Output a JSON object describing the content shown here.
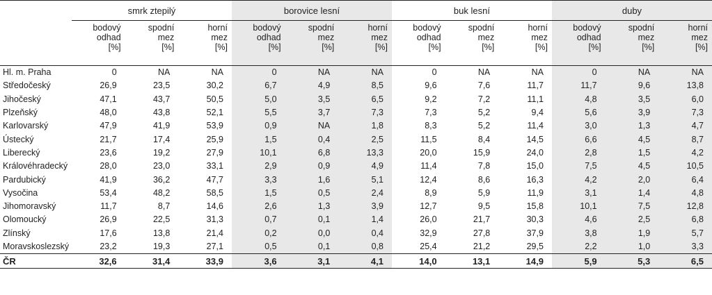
{
  "groups": [
    {
      "label": "smrk ztepilý",
      "shaded": false
    },
    {
      "label": "borovice lesní",
      "shaded": true
    },
    {
      "label": "buk lesní",
      "shaded": false
    },
    {
      "label": "duby",
      "shaded": true
    }
  ],
  "subheaders": [
    [
      "bodový",
      "odhad",
      "[%]"
    ],
    [
      "spodní",
      "mez",
      "[%]"
    ],
    [
      "horní",
      "mez",
      "[%]"
    ]
  ],
  "rows": [
    {
      "name": "Hl. m. Praha",
      "values": [
        "0",
        "NA",
        "NA",
        "0",
        "NA",
        "NA",
        "0",
        "NA",
        "NA",
        "0",
        "NA",
        "NA"
      ]
    },
    {
      "name": "Středočeský",
      "values": [
        "26,9",
        "23,5",
        "30,2",
        "6,7",
        "4,9",
        "8,5",
        "9,6",
        "7,6",
        "11,7",
        "11,7",
        "9,6",
        "13,8"
      ]
    },
    {
      "name": "Jihočeský",
      "values": [
        "47,1",
        "43,7",
        "50,5",
        "5,0",
        "3,5",
        "6,5",
        "9,2",
        "7,2",
        "11,1",
        "4,8",
        "3,5",
        "6,0"
      ]
    },
    {
      "name": "Plzeňský",
      "values": [
        "48,0",
        "43,8",
        "52,1",
        "5,5",
        "3,7",
        "7,3",
        "7,3",
        "5,2",
        "9,4",
        "5,6",
        "3,9",
        "7,3"
      ]
    },
    {
      "name": "Karlovarský",
      "values": [
        "47,9",
        "41,9",
        "53,9",
        "0,9",
        "NA",
        "1,8",
        "8,3",
        "5,2",
        "11,4",
        "3,0",
        "1,3",
        "4,7"
      ]
    },
    {
      "name": "Ústecký",
      "values": [
        "21,7",
        "17,4",
        "25,9",
        "1,5",
        "0,4",
        "2,5",
        "11,5",
        "8,4",
        "14,5",
        "6,6",
        "4,5",
        "8,7"
      ]
    },
    {
      "name": "Liberecký",
      "values": [
        "23,6",
        "19,2",
        "27,9",
        "10,1",
        "6,8",
        "13,3",
        "20,0",
        "15,9",
        "24,0",
        "2,8",
        "1,5",
        "4,2"
      ]
    },
    {
      "name": "Královéhradecký",
      "values": [
        "28,0",
        "23,0",
        "33,1",
        "2,9",
        "0,9",
        "4,9",
        "11,4",
        "7,8",
        "15,0",
        "7,5",
        "4,5",
        "10,5"
      ]
    },
    {
      "name": "Pardubický",
      "values": [
        "41,9",
        "36,2",
        "47,7",
        "3,3",
        "1,6",
        "5,1",
        "12,4",
        "8,6",
        "16,3",
        "4,2",
        "2,0",
        "6,4"
      ]
    },
    {
      "name": "Vysočina",
      "values": [
        "53,4",
        "48,2",
        "58,5",
        "1,5",
        "0,5",
        "2,4",
        "8,9",
        "5,9",
        "11,9",
        "3,1",
        "1,4",
        "4,8"
      ]
    },
    {
      "name": "Jihomoravský",
      "values": [
        "11,7",
        "8,7",
        "14,6",
        "2,6",
        "1,3",
        "3,9",
        "12,7",
        "9,5",
        "15,8",
        "10,1",
        "7,5",
        "12,8"
      ]
    },
    {
      "name": "Olomoucký",
      "values": [
        "26,9",
        "22,5",
        "31,3",
        "0,7",
        "0,1",
        "1,4",
        "26,0",
        "21,7",
        "30,3",
        "4,6",
        "2,5",
        "6,8"
      ]
    },
    {
      "name": "Zlínský",
      "values": [
        "17,6",
        "13,8",
        "21,4",
        "0,2",
        "0,0",
        "0,4",
        "32,9",
        "27,8",
        "37,9",
        "3,8",
        "1,9",
        "5,7"
      ]
    },
    {
      "name": "Moravskoslezský",
      "values": [
        "23,2",
        "19,3",
        "27,1",
        "0,5",
        "0,1",
        "0,8",
        "25,4",
        "21,2",
        "29,5",
        "2,2",
        "1,0",
        "3,3"
      ]
    }
  ],
  "total": {
    "name": "ČR",
    "values": [
      "32,6",
      "31,4",
      "33,9",
      "3,6",
      "3,1",
      "4,1",
      "14,0",
      "13,1",
      "14,9",
      "5,9",
      "5,3",
      "6,5"
    ]
  },
  "colors": {
    "shade": "#e8e8e8",
    "rule": "#222222"
  }
}
